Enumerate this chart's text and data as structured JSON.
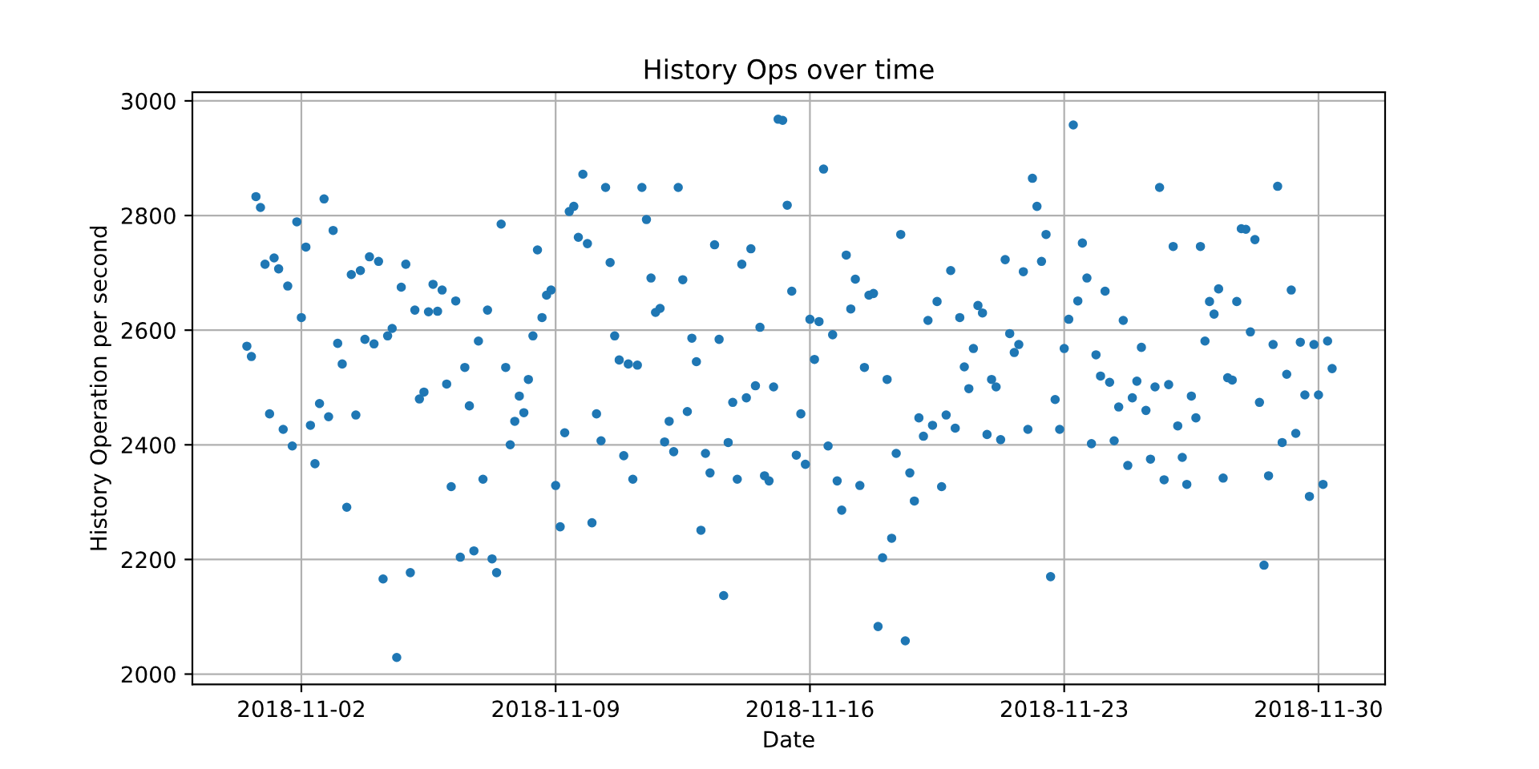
{
  "chart_data": {
    "type": "scatter",
    "title": "History Ops over time",
    "xlabel": "Date",
    "ylabel": "History Operation per second",
    "xlim": [
      "2018-10-30T00:00",
      "2018-12-01T20:00"
    ],
    "xticks": [
      "2018-11-02",
      "2018-11-09",
      "2018-11-16",
      "2018-11-23",
      "2018-11-30"
    ],
    "ylim": [
      1982,
      3015
    ],
    "yticks": [
      2000,
      2200,
      2400,
      2600,
      2800,
      3000
    ],
    "grid": true,
    "marker": "circle",
    "x": [
      "2018-10-31T12:00",
      "2018-10-31T15:00",
      "2018-10-31T18:00",
      "2018-10-31T21:00",
      "2018-11-01T00:00",
      "2018-11-01T03:00",
      "2018-11-01T06:00",
      "2018-11-01T09:00",
      "2018-11-01T12:00",
      "2018-11-01T15:00",
      "2018-11-01T18:00",
      "2018-11-01T21:00",
      "2018-11-02T00:00",
      "2018-11-02T03:00",
      "2018-11-02T06:00",
      "2018-11-02T09:00",
      "2018-11-02T12:00",
      "2018-11-02T15:00",
      "2018-11-02T18:00",
      "2018-11-02T21:00",
      "2018-11-03T00:00",
      "2018-11-03T03:00",
      "2018-11-03T06:00",
      "2018-11-03T09:00",
      "2018-11-03T12:00",
      "2018-11-03T15:00",
      "2018-11-03T18:00",
      "2018-11-03T21:00",
      "2018-11-04T00:00",
      "2018-11-04T03:00",
      "2018-11-04T06:00",
      "2018-11-04T09:00",
      "2018-11-04T12:00",
      "2018-11-04T15:00",
      "2018-11-04T18:00",
      "2018-11-04T21:00",
      "2018-11-05T00:00",
      "2018-11-05T03:00",
      "2018-11-05T06:00",
      "2018-11-05T09:00",
      "2018-11-05T12:00",
      "2018-11-05T15:00",
      "2018-11-05T18:00",
      "2018-11-05T21:00",
      "2018-11-06T00:00",
      "2018-11-06T03:00",
      "2018-11-06T06:00",
      "2018-11-06T09:00",
      "2018-11-06T12:00",
      "2018-11-06T15:00",
      "2018-11-06T18:00",
      "2018-11-06T21:00",
      "2018-11-07T00:00",
      "2018-11-07T03:00",
      "2018-11-07T06:00",
      "2018-11-07T09:00",
      "2018-11-07T12:00",
      "2018-11-07T15:00",
      "2018-11-07T18:00",
      "2018-11-07T21:00",
      "2018-11-08T00:00",
      "2018-11-08T03:00",
      "2018-11-08T06:00",
      "2018-11-08T09:00",
      "2018-11-08T12:00",
      "2018-11-08T15:00",
      "2018-11-08T18:00",
      "2018-11-08T21:00",
      "2018-11-09T00:00",
      "2018-11-09T03:00",
      "2018-11-09T06:00",
      "2018-11-09T09:00",
      "2018-11-09T12:00",
      "2018-11-09T15:00",
      "2018-11-09T18:00",
      "2018-11-09T21:00",
      "2018-11-10T00:00",
      "2018-11-10T03:00",
      "2018-11-10T06:00",
      "2018-11-10T09:00",
      "2018-11-10T12:00",
      "2018-11-10T15:00",
      "2018-11-10T18:00",
      "2018-11-10T21:00",
      "2018-11-11T00:00",
      "2018-11-11T03:00",
      "2018-11-11T06:00",
      "2018-11-11T09:00",
      "2018-11-11T12:00",
      "2018-11-11T15:00",
      "2018-11-11T18:00",
      "2018-11-11T21:00",
      "2018-11-12T00:00",
      "2018-11-12T03:00",
      "2018-11-12T06:00",
      "2018-11-12T09:00",
      "2018-11-12T12:00",
      "2018-11-12T15:00",
      "2018-11-12T18:00",
      "2018-11-12T21:00",
      "2018-11-13T00:00",
      "2018-11-13T03:00",
      "2018-11-13T06:00",
      "2018-11-13T09:00",
      "2018-11-13T12:00",
      "2018-11-13T15:00",
      "2018-11-13T18:00",
      "2018-11-13T21:00",
      "2018-11-14T00:00",
      "2018-11-14T03:00",
      "2018-11-14T06:00",
      "2018-11-14T09:00",
      "2018-11-14T12:00",
      "2018-11-14T15:00",
      "2018-11-14T18:00",
      "2018-11-14T21:00",
      "2018-11-15T00:00",
      "2018-11-15T03:00",
      "2018-11-15T06:00",
      "2018-11-15T09:00",
      "2018-11-15T12:00",
      "2018-11-15T15:00",
      "2018-11-15T18:00",
      "2018-11-15T21:00",
      "2018-11-16T00:00",
      "2018-11-16T03:00",
      "2018-11-16T06:00",
      "2018-11-16T09:00",
      "2018-11-16T12:00",
      "2018-11-16T15:00",
      "2018-11-16T18:00",
      "2018-11-16T21:00",
      "2018-11-17T00:00",
      "2018-11-17T03:00",
      "2018-11-17T06:00",
      "2018-11-17T09:00",
      "2018-11-17T12:00",
      "2018-11-17T15:00",
      "2018-11-17T18:00",
      "2018-11-17T21:00",
      "2018-11-18T00:00",
      "2018-11-18T03:00",
      "2018-11-18T06:00",
      "2018-11-18T09:00",
      "2018-11-18T12:00",
      "2018-11-18T15:00",
      "2018-11-18T18:00",
      "2018-11-18T21:00",
      "2018-11-19T00:00",
      "2018-11-19T03:00",
      "2018-11-19T06:00",
      "2018-11-19T09:00",
      "2018-11-19T12:00",
      "2018-11-19T15:00",
      "2018-11-19T18:00",
      "2018-11-19T21:00",
      "2018-11-20T00:00",
      "2018-11-20T03:00",
      "2018-11-20T06:00",
      "2018-11-20T09:00",
      "2018-11-20T12:00",
      "2018-11-20T15:00",
      "2018-11-20T18:00",
      "2018-11-20T21:00",
      "2018-11-21T00:00",
      "2018-11-21T03:00",
      "2018-11-21T06:00",
      "2018-11-21T09:00",
      "2018-11-21T12:00",
      "2018-11-21T15:00",
      "2018-11-21T18:00",
      "2018-11-21T21:00",
      "2018-11-22T00:00",
      "2018-11-22T03:00",
      "2018-11-22T06:00",
      "2018-11-22T09:00",
      "2018-11-22T12:00",
      "2018-11-22T15:00",
      "2018-11-22T18:00",
      "2018-11-22T21:00",
      "2018-11-23T00:00",
      "2018-11-23T03:00",
      "2018-11-23T06:00",
      "2018-11-23T09:00",
      "2018-11-23T12:00",
      "2018-11-23T15:00",
      "2018-11-23T18:00",
      "2018-11-23T21:00",
      "2018-11-24T00:00",
      "2018-11-24T03:00",
      "2018-11-24T06:00",
      "2018-11-24T09:00",
      "2018-11-24T12:00",
      "2018-11-24T15:00",
      "2018-11-24T18:00",
      "2018-11-24T21:00",
      "2018-11-25T00:00",
      "2018-11-25T03:00",
      "2018-11-25T06:00",
      "2018-11-25T09:00",
      "2018-11-25T12:00",
      "2018-11-25T15:00",
      "2018-11-25T18:00",
      "2018-11-25T21:00",
      "2018-11-26T00:00",
      "2018-11-26T03:00",
      "2018-11-26T06:00",
      "2018-11-26T09:00",
      "2018-11-26T12:00",
      "2018-11-26T15:00",
      "2018-11-26T18:00",
      "2018-11-26T21:00",
      "2018-11-27T00:00",
      "2018-11-27T03:00",
      "2018-11-27T06:00",
      "2018-11-27T09:00",
      "2018-11-27T12:00",
      "2018-11-27T15:00",
      "2018-11-27T18:00",
      "2018-11-27T21:00",
      "2018-11-28T00:00",
      "2018-11-28T03:00",
      "2018-11-28T06:00",
      "2018-11-28T09:00",
      "2018-11-28T12:00",
      "2018-11-28T15:00",
      "2018-11-28T18:00",
      "2018-11-28T21:00",
      "2018-11-29T00:00",
      "2018-11-29T03:00",
      "2018-11-29T06:00",
      "2018-11-29T09:00",
      "2018-11-29T12:00",
      "2018-11-29T15:00",
      "2018-11-29T18:00",
      "2018-11-29T21:00",
      "2018-11-30T00:00",
      "2018-11-30T03:00",
      "2018-11-30T06:00",
      "2018-11-30T09:00"
    ],
    "series": [
      {
        "color": "#1f77b4",
        "values": [
          2572,
          2554,
          2833,
          2814,
          2715,
          2454,
          2726,
          2707,
          2427,
          2677,
          2398,
          2789,
          2622,
          2745,
          2434,
          2367,
          2472,
          2829,
          2449,
          2774,
          2577,
          2541,
          2291,
          2697,
          2452,
          2704,
          2584,
          2728,
          2576,
          2720,
          2166,
          2590,
          2603,
          2029,
          2675,
          2715,
          2177,
          2635,
          2480,
          2492,
          2632,
          2680,
          2633,
          2670,
          2506,
          2327,
          2651,
          2204,
          2535,
          2468,
          2215,
          2581,
          2340,
          2635,
          2201,
          2177,
          2785,
          2535,
          2400,
          2441,
          2485,
          2456,
          2514,
          2590,
          2740,
          2622,
          2661,
          2670,
          2329,
          2257,
          2421,
          2807,
          2816,
          2762,
          2872,
          2751,
          2264,
          2454,
          2407,
          2849,
          2718,
          2590,
          2548,
          2381,
          2541,
          2340,
          2539,
          2849,
          2793,
          2691,
          2631,
          2638,
          2405,
          2441,
          2388,
          2849,
          2688,
          2458,
          2586,
          2545,
          2251,
          2385,
          2351,
          2749,
          2584,
          2137,
          2404,
          2474,
          2340,
          2715,
          2482,
          2742,
          2503,
          2605,
          2346,
          2337,
          2501,
          2968,
          2966,
          2818,
          2668,
          2382,
          2454,
          2366,
          2619,
          2549,
          2615,
          2881,
          2398,
          2592,
          2337,
          2286,
          2731,
          2637,
          2689,
          2329,
          2535,
          2661,
          2664,
          2083,
          2203,
          2514,
          2237,
          2385,
          2767,
          2058,
          2351,
          2302,
          2447,
          2415,
          2617,
          2434,
          2650,
          2327,
          2452,
          2704,
          2429,
          2622,
          2536,
          2498,
          2568,
          2643,
          2630,
          2418,
          2514,
          2501,
          2409,
          2723,
          2594,
          2561,
          2575,
          2702,
          2427,
          2865,
          2816,
          2720,
          2767,
          2170,
          2479,
          2427,
          2568,
          2619,
          2958,
          2651,
          2752,
          2691,
          2402,
          2557,
          2520,
          2668,
          2509,
          2407,
          2466,
          2617,
          2364,
          2482,
          2511,
          2570,
          2460,
          2375,
          2501,
          2849,
          2339,
          2505,
          2746,
          2433,
          2378,
          2331,
          2485,
          2447,
          2746,
          2581,
          2650,
          2628,
          2672,
          2342,
          2517,
          2513,
          2650,
          2777,
          2776,
          2597,
          2758,
          2474,
          2190,
          2346,
          2575,
          2851,
          2404,
          2523,
          2670,
          2420,
          2579,
          2487,
          2310,
          2575,
          2487,
          2331,
          2581,
          2533
        ]
      }
    ]
  }
}
